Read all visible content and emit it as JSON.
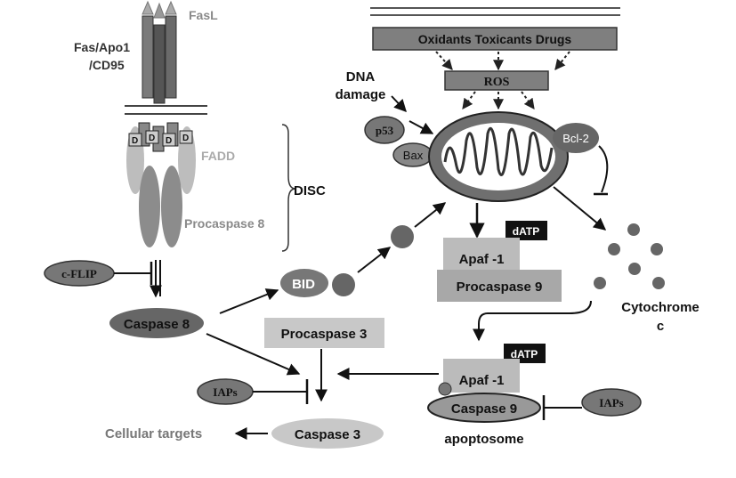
{
  "receptor": {
    "ligand_label": "FasL",
    "receptor_label_line1": "Fas/Apo1",
    "receptor_label_line2": "/CD95",
    "death_domain_letter": "D",
    "fadd_label": "FADD",
    "procaspase8_label": "Procaspase 8",
    "disc_label": "DISC"
  },
  "inhibitors": {
    "cflip_label": "c-FLIP",
    "iaps_left_label": "IAPs",
    "iaps_right_label": "IAPs",
    "bcl2_label": "Bcl-2"
  },
  "extrinsic": {
    "caspase8_label": "Caspase 8",
    "bid_label": "BID"
  },
  "intrinsic": {
    "oxidants_label": "Oxidants Toxicants Drugs",
    "ros_label": "ROS",
    "dna_damage_line1": "DNA",
    "dna_damage_line2": "damage",
    "p53_label": "p53",
    "bax_label": "Bax",
    "datp_upper_label": "dATP",
    "apaf1_upper_label": "Apaf -1",
    "procaspase9_label": "Procaspase 9",
    "cytochrome_line1": "Cytochrome",
    "cytochrome_line2": "c"
  },
  "apoptosome": {
    "datp_label": "dATP",
    "apaf1_label": "Apaf -1",
    "caspase9_label": "Caspase 9",
    "apoptosome_label": "apoptosome"
  },
  "execution": {
    "procaspase3_label": "Procaspase 3",
    "caspase3_label": "Caspase 3",
    "cellular_targets_label": "Cellular targets"
  }
}
